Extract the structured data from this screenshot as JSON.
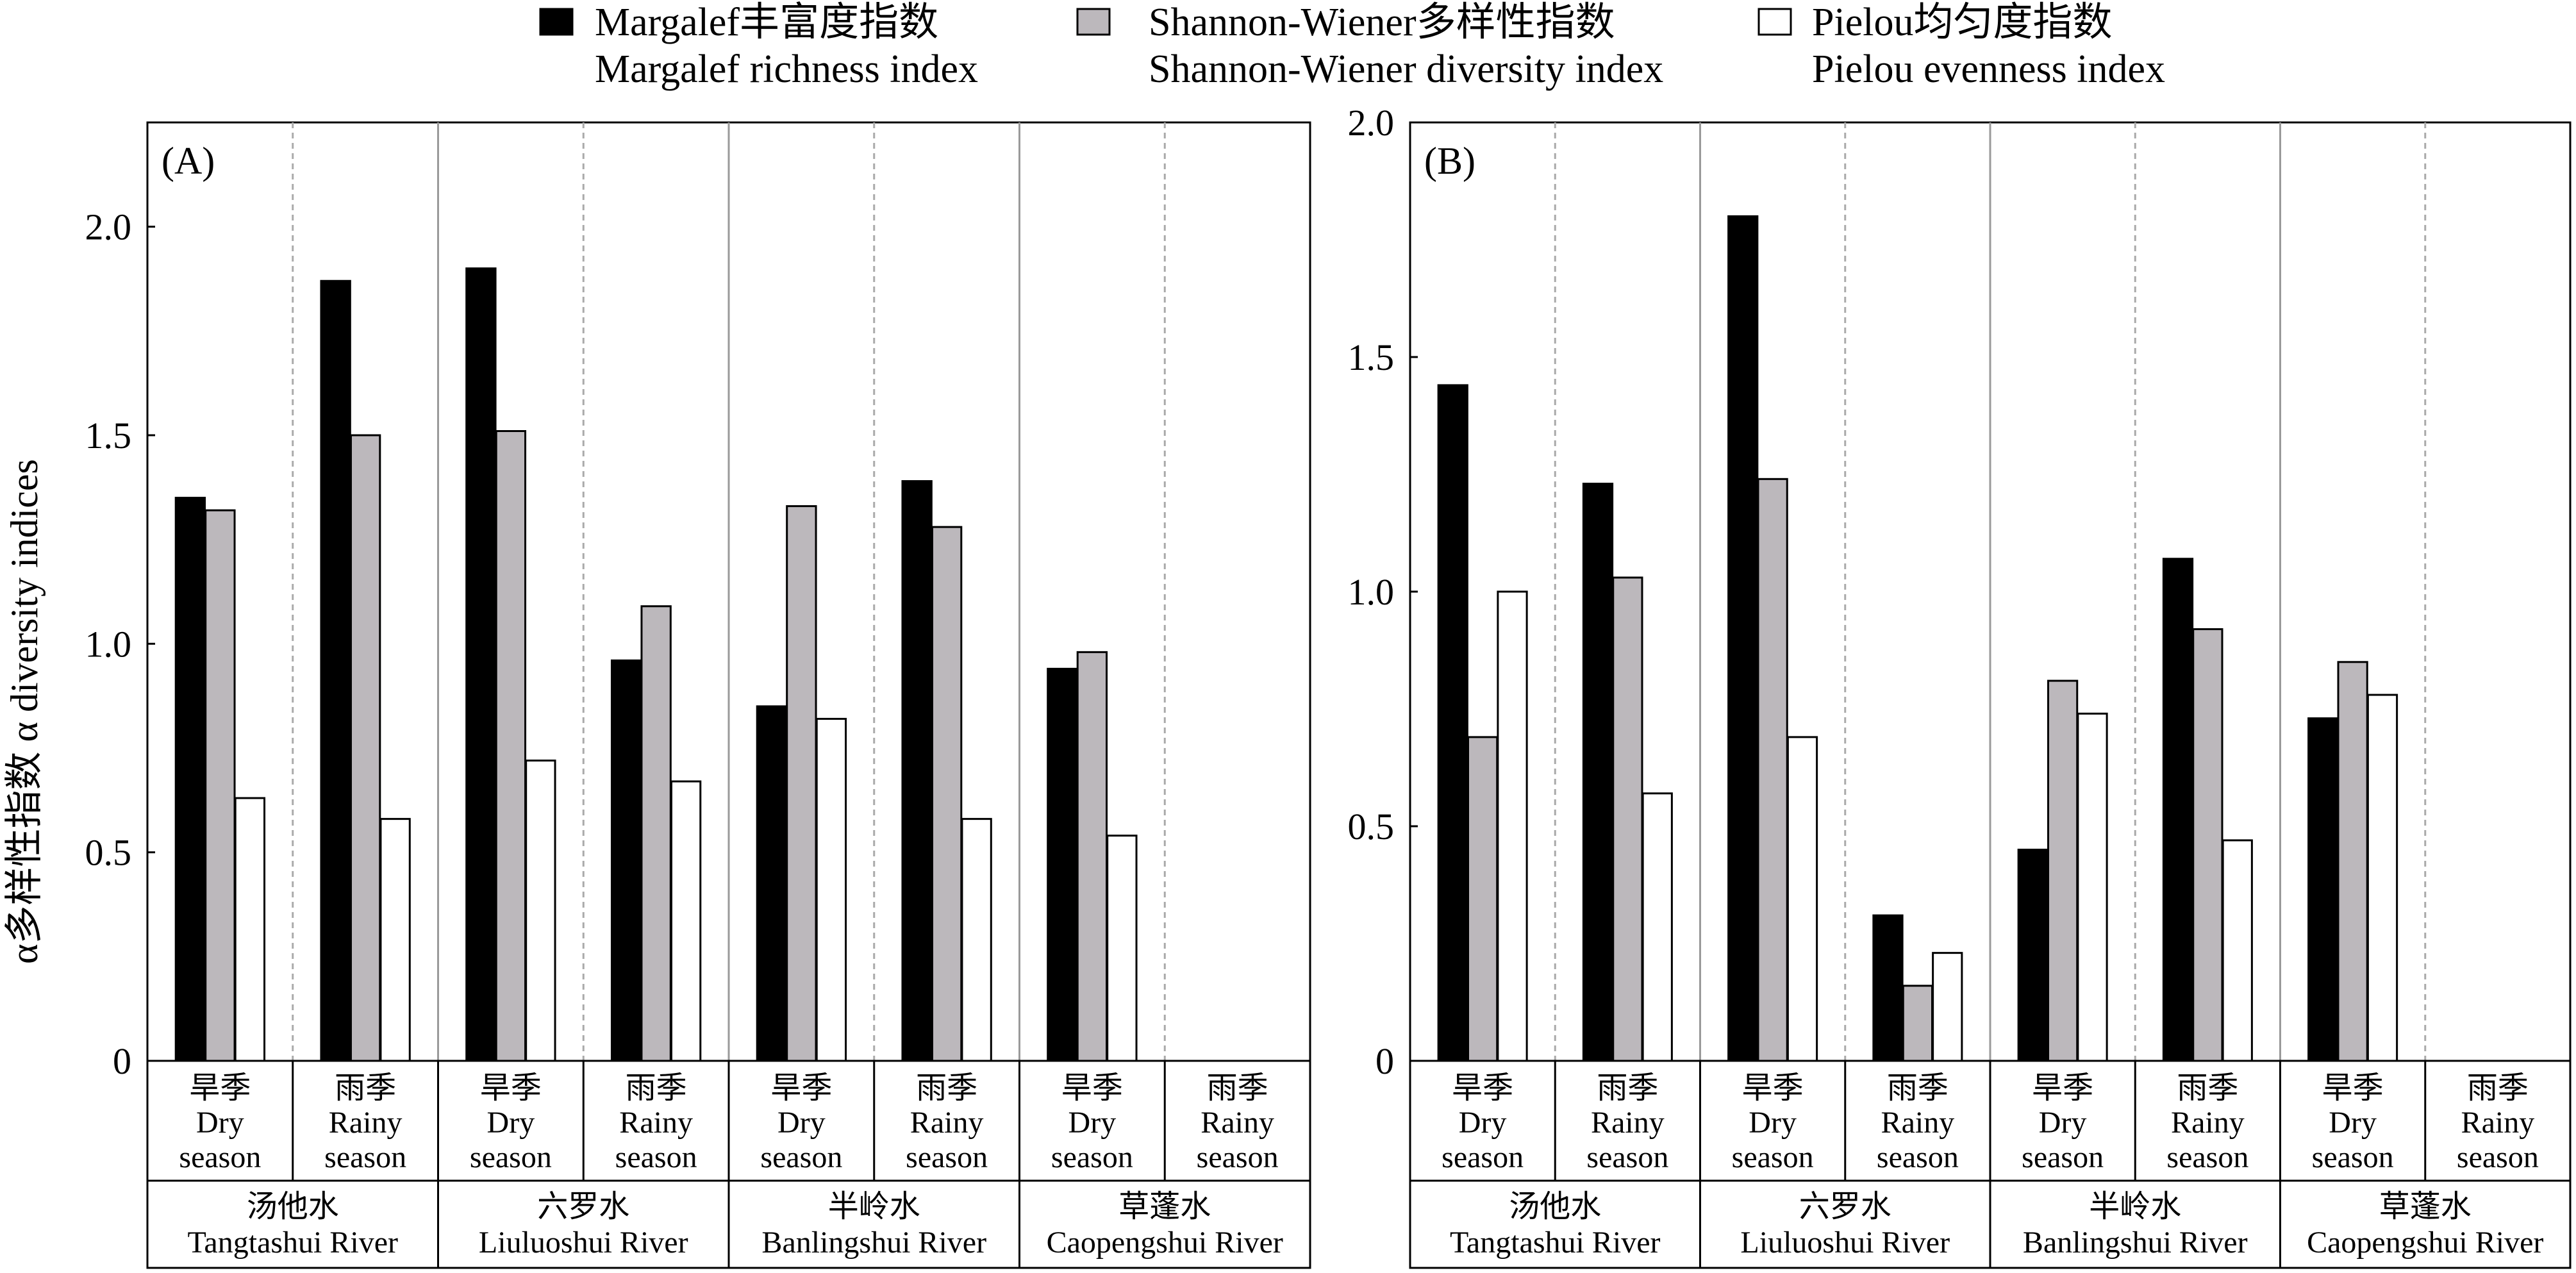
{
  "chart_data": {
    "type": "bar",
    "ylabel": "α多样性指数 α diversity indices",
    "legend": {
      "placement": "top",
      "entries": [
        {
          "name_cn": "Margalef丰富度指数",
          "name_en": "Margalef richness index",
          "color": "#000000"
        },
        {
          "name_cn": "Shannon-Wiener多样性指数",
          "name_en": "Shannon-Wiener diversity index",
          "color": "#bcb8bc"
        },
        {
          "name_cn": "Pielou均匀度指数",
          "name_en": "Pielou evenness index",
          "color": "#ffffff"
        }
      ]
    },
    "rivers": [
      {
        "cn": "汤他水",
        "en": "Tangtashui River"
      },
      {
        "cn": "六罗水",
        "en": "Liuluoshui River"
      },
      {
        "cn": "半岭水",
        "en": "Banlingshui River"
      },
      {
        "cn": "草蓬水",
        "en": "Caopengshui River"
      }
    ],
    "seasons": [
      {
        "cn": "旱季",
        "en1": "Dry",
        "en2": "season"
      },
      {
        "cn": "雨季",
        "en1": "Rainy",
        "en2": "season"
      }
    ],
    "panels": [
      {
        "label": "(A)",
        "ylim": [
          0,
          2.25
        ],
        "yticks": [
          0,
          0.5,
          1.0,
          1.5,
          2.0
        ],
        "ytick_labels": [
          "0",
          "0.5",
          "1.0",
          "1.5",
          "2.0"
        ],
        "groups": [
          [
            1.35,
            1.32,
            0.63
          ],
          [
            1.87,
            1.5,
            0.58
          ],
          [
            1.9,
            1.51,
            0.72
          ],
          [
            0.96,
            1.09,
            0.67
          ],
          [
            0.85,
            1.33,
            0.82
          ],
          [
            1.39,
            1.28,
            0.58
          ],
          [
            0.94,
            0.98,
            0.54
          ],
          null
        ]
      },
      {
        "label": "(B)",
        "ylim": [
          0,
          2.0
        ],
        "yticks": [
          0,
          0.5,
          1.0,
          1.5,
          2.0
        ],
        "ytick_labels": [
          "0",
          "0.5",
          "1.0",
          "1.5",
          "2.0"
        ],
        "groups": [
          [
            1.44,
            0.69,
            1.0
          ],
          [
            1.23,
            1.03,
            0.57
          ],
          [
            1.8,
            1.24,
            0.69
          ],
          [
            0.31,
            0.16,
            0.23
          ],
          [
            0.45,
            0.81,
            0.74
          ],
          [
            1.07,
            0.92,
            0.47
          ],
          [
            0.73,
            0.85,
            0.78
          ],
          null
        ]
      }
    ]
  }
}
